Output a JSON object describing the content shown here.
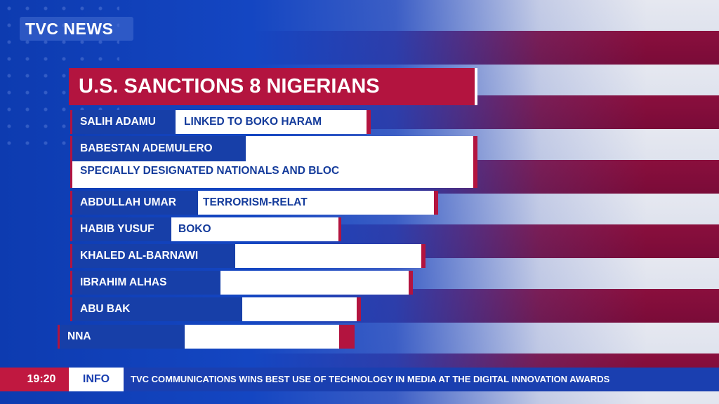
{
  "logo": "TVC NEWS",
  "title": "U.S. SANCTIONS 8 NIGERIANS",
  "rows": [
    {
      "name": "SALIH ADAMU",
      "detail": "LINKED TO BOKO HARAM"
    },
    {
      "name": "BABESTAN ADEMULERO",
      "detail": "SPECIALLY DESIGNATED NATIONALS AND BLOC"
    },
    {
      "name": "ABDULLAH UMAR",
      "detail": "TERRORISM-RELAT"
    },
    {
      "name": "HABIB YUSUF",
      "detail": "BOKO"
    },
    {
      "name": "KHALED AL-BARNAWI",
      "detail": ""
    },
    {
      "name": "IBRAHIM ALHAS",
      "detail": ""
    },
    {
      "name": "ABU BAK",
      "detail": ""
    },
    {
      "name": "NNA",
      "detail": ""
    }
  ],
  "ticker": {
    "time": "19:20",
    "label": "INFO",
    "text": "TVC COMMUNICATIONS WINS BEST USE OF TECHNOLOGY IN MEDIA AT THE DIGITAL INNOVATION AWARDS"
  },
  "colors": {
    "accent_red": "#b3143f",
    "blue": "#173fa8"
  }
}
